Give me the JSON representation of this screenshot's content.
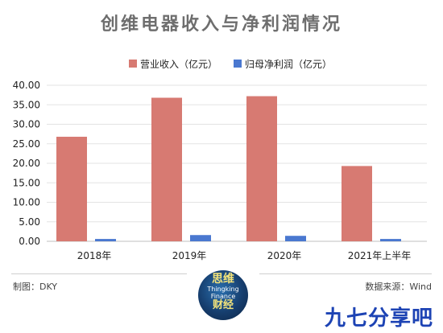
{
  "chart_data": {
    "type": "bar",
    "title": "创维电器收入与净利润情况",
    "categories": [
      "2018年",
      "2019年",
      "2020年",
      "2021年上半年"
    ],
    "series": [
      {
        "name": "营业收入（亿元）",
        "color": "#d77a72",
        "values": [
          26.8,
          36.8,
          37.2,
          19.3
        ]
      },
      {
        "name": "归母净利润（亿元）",
        "color": "#4a78d0",
        "values": [
          0.6,
          1.6,
          1.4,
          0.6
        ]
      }
    ],
    "yticks": [
      "0.00",
      "5.00",
      "10.00",
      "15.00",
      "20.00",
      "25.00",
      "30.00",
      "35.00",
      "40.00"
    ],
    "ylim": [
      0,
      40
    ],
    "grid": true,
    "legend_position": "top-center"
  },
  "footer": {
    "left": "制图：DKY",
    "right": "数据来源：Wind"
  },
  "logo": {
    "line1": "思维",
    "line2": "Thingking",
    "line3": "Finance",
    "line4": "财经"
  },
  "watermark": "九七分享吧"
}
